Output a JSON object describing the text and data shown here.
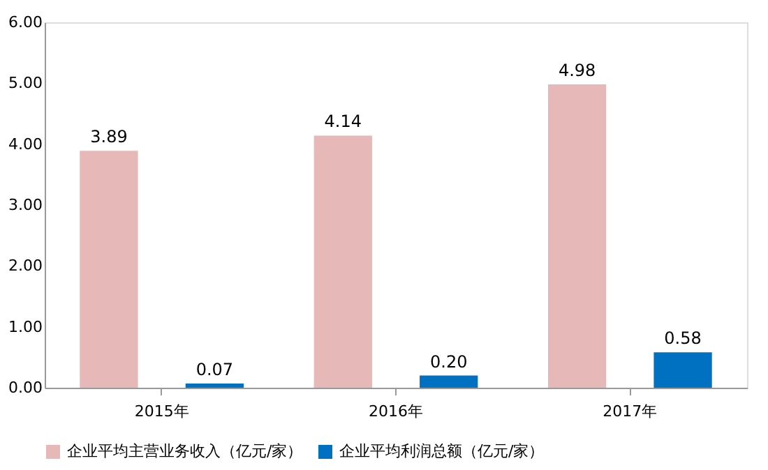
{
  "chart_data": {
    "type": "bar",
    "categories": [
      "2015年",
      "2016年",
      "2017年"
    ],
    "series": [
      {
        "name": "企业平均主营业务收入（亿元/家）",
        "color": "#e6b8b7",
        "values": [
          3.89,
          4.14,
          4.98
        ],
        "value_labels": [
          "3.89",
          "4.14",
          "4.98"
        ]
      },
      {
        "name": "企业平均利润总额（亿元/家）",
        "color": "#0070c0",
        "values": [
          0.07,
          0.2,
          0.58
        ],
        "value_labels": [
          "0.07",
          "0.20",
          "0.58"
        ]
      }
    ],
    "ylim": [
      0,
      6
    ],
    "yticks": [
      {
        "value": 0,
        "label": "0.00"
      },
      {
        "value": 1,
        "label": "1.00"
      },
      {
        "value": 2,
        "label": "2.00"
      },
      {
        "value": 3,
        "label": "3.00"
      },
      {
        "value": 4,
        "label": "4.00"
      },
      {
        "value": 5,
        "label": "5.00"
      },
      {
        "value": 6,
        "label": "6.00"
      }
    ],
    "grid": false,
    "legend": "bottom"
  }
}
